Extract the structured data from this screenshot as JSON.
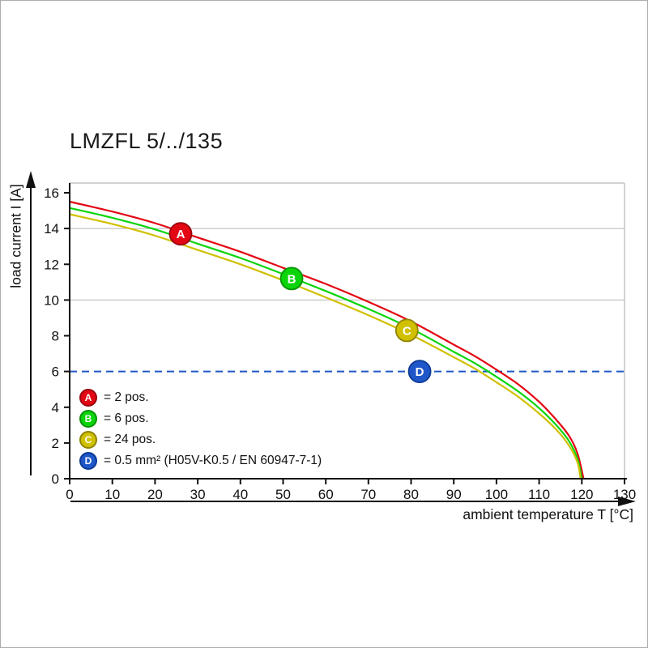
{
  "chart_data": {
    "type": "line",
    "title": "LMZFL 5/../135",
    "xlabel": "ambient temperature T [°C]",
    "ylabel": "load current I [A]",
    "xlim": [
      0,
      130
    ],
    "ylim": [
      0,
      16
    ],
    "x_ticks": [
      0,
      10,
      20,
      30,
      40,
      50,
      60,
      70,
      80,
      90,
      100,
      110,
      120,
      130
    ],
    "y_ticks": [
      0,
      2,
      4,
      6,
      8,
      10,
      12,
      14,
      16
    ],
    "gridlines_y": [
      10,
      14
    ],
    "grid_on": true,
    "grid_color": "#c4c4c4",
    "axis_color": "#111111",
    "marker_letter_color": "#ffffff",
    "reference_line": {
      "key": "D",
      "y": 6,
      "style": "dashed",
      "color": "#1f57c8",
      "ring": "#0b3a95",
      "marker": {
        "x": 82,
        "y": 6
      }
    },
    "series": [
      {
        "name": "A",
        "label": "2 pos.",
        "color": "#e30613",
        "ring": "#9a040d",
        "marker": {
          "x": 26,
          "y": 13.7
        },
        "points": [
          [
            0,
            15.5
          ],
          [
            10,
            14.95
          ],
          [
            20,
            14.3
          ],
          [
            30,
            13.5
          ],
          [
            40,
            12.7
          ],
          [
            50,
            11.8
          ],
          [
            60,
            10.9
          ],
          [
            70,
            9.9
          ],
          [
            80,
            8.8
          ],
          [
            90,
            7.5
          ],
          [
            95,
            6.85
          ],
          [
            100,
            6.1
          ],
          [
            105,
            5.3
          ],
          [
            110,
            4.3
          ],
          [
            114,
            3.3
          ],
          [
            117,
            2.4
          ],
          [
            119,
            1.4
          ],
          [
            120.4,
            0
          ]
        ]
      },
      {
        "name": "B",
        "label": "6 pos.",
        "color": "#0bd40b",
        "ring": "#079207",
        "marker": {
          "x": 52,
          "y": 11.2
        },
        "points": [
          [
            0,
            15.15
          ],
          [
            10,
            14.6
          ],
          [
            20,
            13.95
          ],
          [
            30,
            13.15
          ],
          [
            40,
            12.35
          ],
          [
            50,
            11.45
          ],
          [
            60,
            10.5
          ],
          [
            70,
            9.5
          ],
          [
            80,
            8.4
          ],
          [
            90,
            7.1
          ],
          [
            95,
            6.45
          ],
          [
            100,
            5.7
          ],
          [
            105,
            4.9
          ],
          [
            110,
            3.95
          ],
          [
            114,
            3.0
          ],
          [
            117,
            2.1
          ],
          [
            119,
            1.1
          ],
          [
            120,
            0
          ]
        ]
      },
      {
        "name": "C",
        "label": "24 pos.",
        "color": "#d0c000",
        "ring": "#8f8400",
        "marker": {
          "x": 79,
          "y": 8.3
        },
        "points": [
          [
            0,
            14.8
          ],
          [
            10,
            14.25
          ],
          [
            20,
            13.6
          ],
          [
            30,
            12.8
          ],
          [
            40,
            12.0
          ],
          [
            50,
            11.1
          ],
          [
            60,
            10.15
          ],
          [
            70,
            9.15
          ],
          [
            80,
            8.05
          ],
          [
            90,
            6.8
          ],
          [
            95,
            6.15
          ],
          [
            100,
            5.4
          ],
          [
            105,
            4.6
          ],
          [
            110,
            3.65
          ],
          [
            114,
            2.75
          ],
          [
            117,
            1.85
          ],
          [
            119,
            0.9
          ],
          [
            119.7,
            0
          ]
        ]
      }
    ],
    "legend": {
      "position": "bottom-left",
      "items": [
        {
          "key": "A",
          "label": "= 2 pos.",
          "color": "#e30613",
          "ring": "#9a040d"
        },
        {
          "key": "B",
          "label": "= 6 pos.",
          "color": "#0bd40b",
          "ring": "#079207"
        },
        {
          "key": "C",
          "label": "= 24 pos.",
          "color": "#d0c000",
          "ring": "#8f8400"
        },
        {
          "key": "D",
          "label": "= 0.5 mm² (H05V-K0.5 / EN 60947-7-1)",
          "color": "#1f57c8",
          "ring": "#0b3a95"
        }
      ]
    }
  }
}
